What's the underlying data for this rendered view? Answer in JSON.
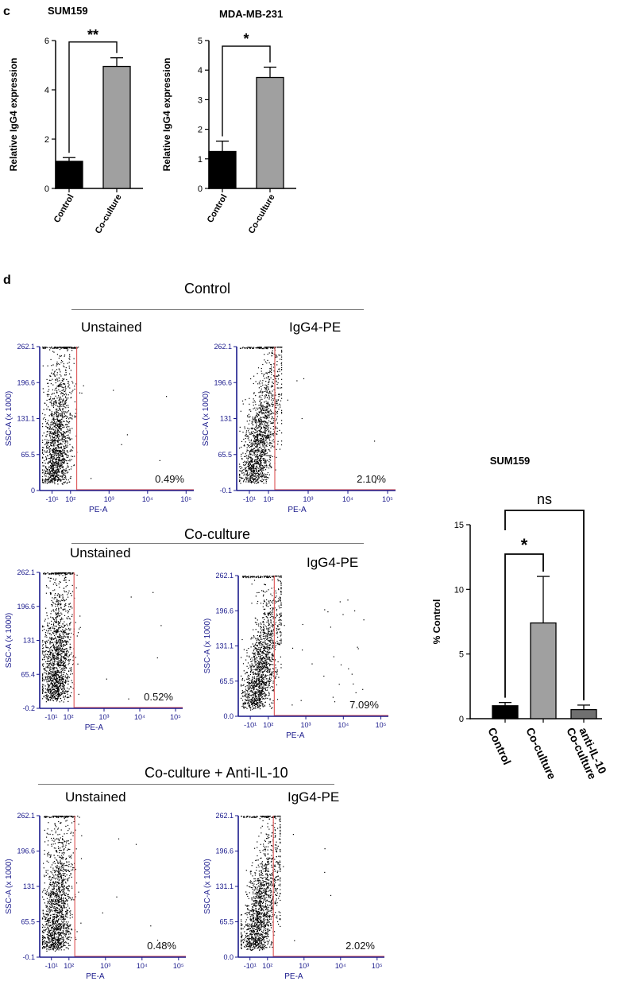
{
  "panel_c": {
    "letter": "c",
    "charts": [
      {
        "title": "SUM159",
        "ylabel": "Relative IgG4 expression",
        "categories": [
          "Control",
          "Co-culture"
        ],
        "values": [
          1.1,
          4.95
        ],
        "errors": [
          0.15,
          0.35
        ],
        "colors": [
          "#000000",
          "#a0a0a0"
        ],
        "ylim": [
          0,
          6
        ],
        "yticks": [
          "0",
          "2",
          "4",
          "6"
        ],
        "significance": "**"
      },
      {
        "title": "MDA-MB-231",
        "ylabel": "Relative IgG4 expression",
        "categories": [
          "Control",
          "Co-culture"
        ],
        "values": [
          1.25,
          3.75
        ],
        "errors": [
          0.35,
          0.35
        ],
        "colors": [
          "#000000",
          "#a0a0a0"
        ],
        "ylim": [
          0,
          5
        ],
        "yticks": [
          "0",
          "1",
          "2",
          "3",
          "4",
          "5"
        ],
        "significance": "*"
      }
    ]
  },
  "panel_d": {
    "letter": "d",
    "groups": [
      {
        "title": "Control",
        "plots": [
          {
            "subtitle": "Unstained",
            "percent": "0.49%",
            "yticks": [
              "262.1",
              "196.6",
              "131.1",
              "65.5",
              "0"
            ]
          },
          {
            "subtitle": "IgG4-PE",
            "percent": "2.10%",
            "yticks": [
              "262.1",
              "196.6",
              "131",
              "65.5",
              "-0.1"
            ]
          }
        ]
      },
      {
        "title": "Co-culture",
        "plots": [
          {
            "subtitle": "Unstained",
            "percent": "0.52%",
            "yticks": [
              "262.1",
              "196.6",
              "131",
              "65.4",
              "-0.2"
            ]
          },
          {
            "subtitle": "IgG4-PE",
            "percent": "7.09%",
            "yticks": [
              "262.1",
              "196.6",
              "131.1",
              "65.5",
              "0.0"
            ]
          }
        ]
      },
      {
        "title": "Co-culture + Anti-IL-10",
        "plots": [
          {
            "subtitle": "Unstained",
            "percent": "0.48%",
            "yticks": [
              "262.1",
              "196.6",
              "131",
              "65.5",
              "-0.1"
            ]
          },
          {
            "subtitle": "IgG4-PE",
            "percent": "2.02%",
            "yticks": [
              "262.1",
              "196.6",
              "131.1",
              "65.5",
              "0.0"
            ]
          }
        ]
      }
    ],
    "flow_axes": {
      "xlabel": "PE-A",
      "ylabel": "SSC-A (x 1000)",
      "xticks": [
        "-10¹",
        "10²",
        "10³",
        "10⁴",
        "10⁵"
      ]
    },
    "colors": {
      "axis": "#1a1a8c",
      "gate": "#e06060",
      "dots": "#000000"
    }
  },
  "chart_data": {
    "type": "bar",
    "title": "SUM159",
    "ylabel": "% Control",
    "categories": [
      "Control",
      "Co-culture",
      "Co-culture + anti-IL-10"
    ],
    "category_lines": [
      [
        "Control"
      ],
      [
        "Co-culture"
      ],
      [
        "Co-culture +",
        "anti-IL-10"
      ]
    ],
    "values": [
      1.0,
      7.4,
      0.7
    ],
    "errors": [
      0.25,
      3.6,
      0.35
    ],
    "colors": [
      "#000000",
      "#a0a0a0",
      "#707070"
    ],
    "ylim": [
      0,
      15
    ],
    "yticks": [
      "0",
      "5",
      "10",
      "15"
    ],
    "significance": [
      {
        "pair": [
          0,
          1
        ],
        "label": "*"
      },
      {
        "pair": [
          0,
          2
        ],
        "label": "ns"
      }
    ]
  }
}
